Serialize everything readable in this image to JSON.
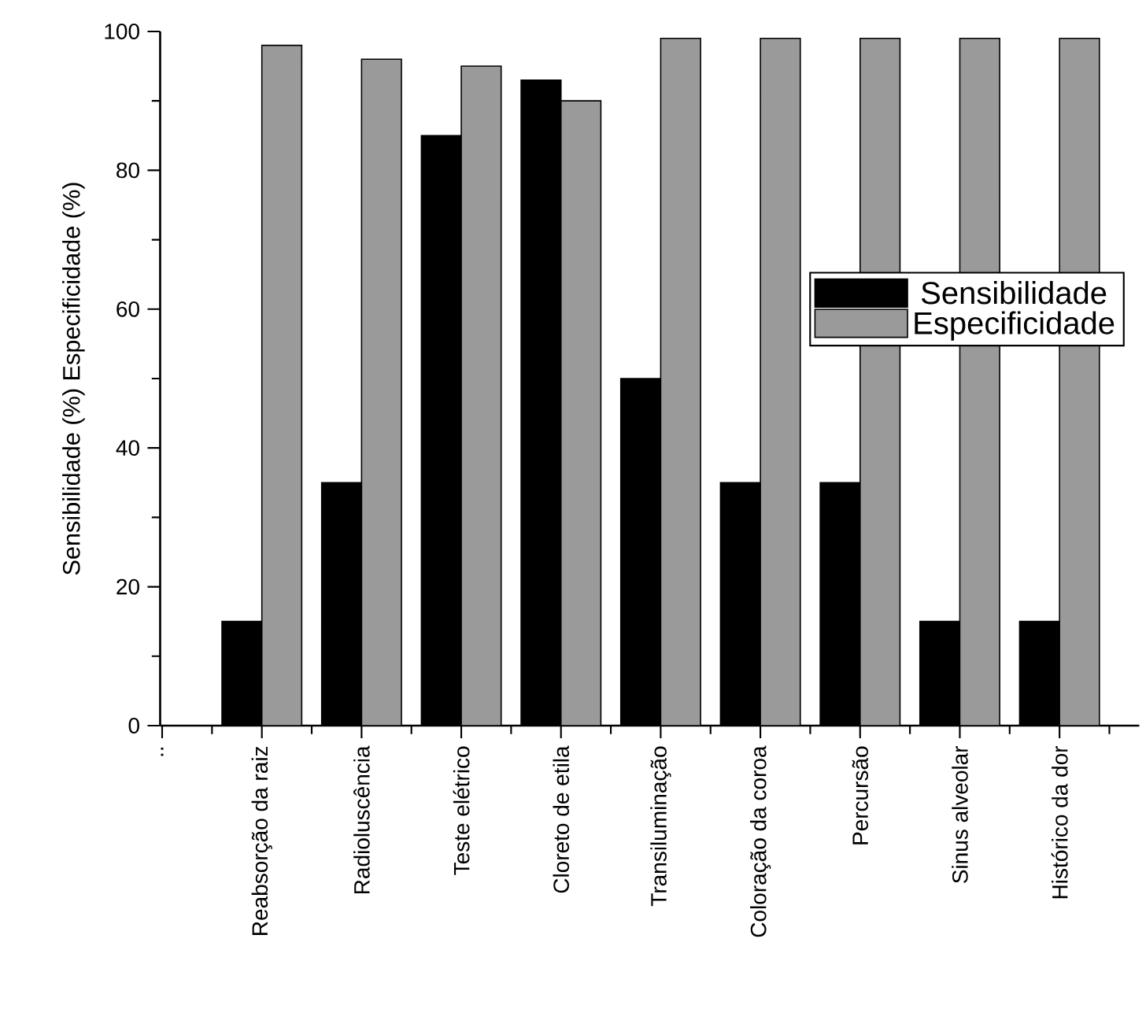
{
  "chart_data": {
    "type": "bar",
    "ylabel": "Sensibilidade (%) Especificidade (%)",
    "categories": [
      "..",
      "Reabsorção da raiz",
      "Radioluscência",
      "Teste elétrico",
      "Cloreto de etila",
      "Transiluminação",
      "Coloração da coroa",
      "Percursão",
      "Sinus alveolar",
      "Histórico da dor"
    ],
    "series": [
      {
        "name": "Sensibilidade",
        "color": "#000000",
        "values": [
          null,
          15,
          35,
          85,
          93,
          50,
          35,
          35,
          15,
          15
        ]
      },
      {
        "name": "Especificidade",
        "color": "#9a9a9a",
        "values": [
          null,
          98,
          96,
          95,
          90,
          99,
          99,
          99,
          99,
          99
        ]
      }
    ],
    "ylim": [
      0,
      100
    ],
    "yticks": [
      0,
      20,
      40,
      60,
      80,
      100
    ],
    "grid": false,
    "legend": "right"
  }
}
